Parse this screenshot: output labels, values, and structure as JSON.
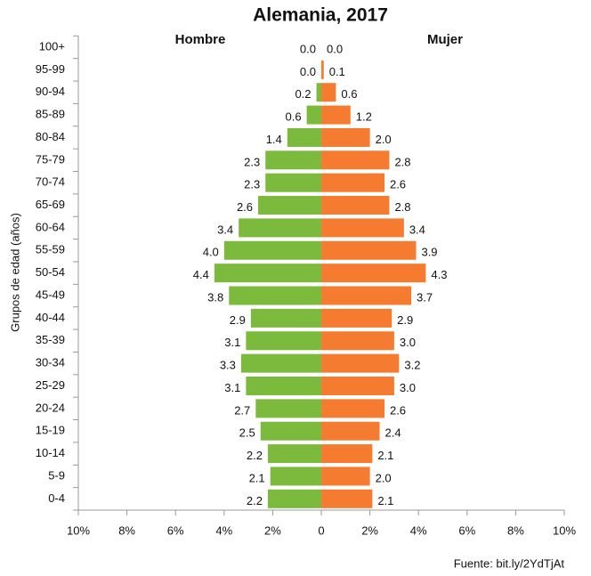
{
  "chart_data": {
    "type": "pyramid",
    "title": "Alemania, 2017",
    "y_label": "Grupos de edad (años)",
    "source": "Fuente: bit.ly/2YdTjAt",
    "categories": [
      "100+",
      "95-99",
      "90-94",
      "85-89",
      "80-84",
      "75-79",
      "70-74",
      "65-69",
      "60-64",
      "55-59",
      "50-54",
      "45-49",
      "40-44",
      "35-39",
      "30-34",
      "25-29",
      "20-24",
      "15-19",
      "10-14",
      "5-9",
      "0-4"
    ],
    "series": [
      {
        "name": "Hombre",
        "color": "#7cba3d",
        "side": "left",
        "values": [
          0.0,
          0.0,
          0.2,
          0.6,
          1.4,
          2.3,
          2.3,
          2.6,
          3.4,
          4.0,
          4.4,
          3.8,
          2.9,
          3.1,
          3.3,
          3.1,
          2.7,
          2.5,
          2.2,
          2.1,
          2.2
        ],
        "value_labels": [
          "0.0",
          "0.0",
          "0.2",
          "0.6",
          "1.4",
          "2.3",
          "2.3",
          "2.6",
          "3.4",
          "4.0",
          "4.4",
          "3.8",
          "2.9",
          "3.1",
          "3.3",
          "3.1",
          "2.7",
          "2.5",
          "2.2",
          "2.1",
          "2.2"
        ]
      },
      {
        "name": "Mujer",
        "color": "#f47b30",
        "side": "right",
        "values": [
          0.0,
          0.1,
          0.6,
          1.2,
          2.0,
          2.8,
          2.6,
          2.8,
          3.4,
          3.9,
          4.3,
          3.7,
          2.9,
          3.0,
          3.2,
          3.0,
          2.6,
          2.4,
          2.1,
          2.0,
          2.1
        ],
        "value_labels": [
          "0.0",
          "0.1",
          "0.6",
          "1.2",
          "2.0",
          "2.8",
          "2.6",
          "2.8",
          "3.4",
          "3.9",
          "4.3",
          "3.7",
          "2.9",
          "3.0",
          "3.2",
          "3.0",
          "2.6",
          "2.4",
          "2.1",
          "2.0",
          "2.1"
        ]
      }
    ],
    "xlim": [
      -10,
      10
    ],
    "xticks": [
      {
        "value": -10,
        "label": "10%"
      },
      {
        "value": -8,
        "label": "8%"
      },
      {
        "value": -6,
        "label": "6%"
      },
      {
        "value": -4,
        "label": "4%"
      },
      {
        "value": -2,
        "label": "2%"
      },
      0,
      {
        "value": 2,
        "label": "2%"
      },
      {
        "value": 4,
        "label": "4%"
      },
      {
        "value": 6,
        "label": "6%"
      },
      {
        "value": 8,
        "label": "8%"
      },
      {
        "value": 10,
        "label": "10%"
      }
    ]
  }
}
